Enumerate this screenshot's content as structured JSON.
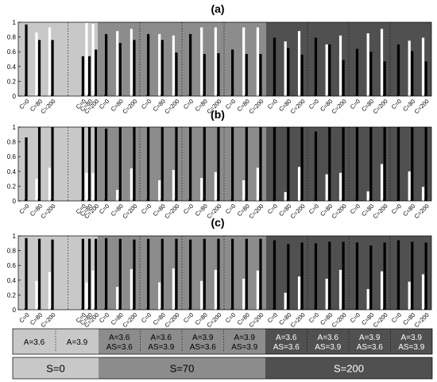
{
  "chart_data": [
    {
      "panel": "(a)",
      "type": "bar",
      "ylim": [
        0,
        1
      ],
      "yticks": [
        "0",
        "0.2",
        "0.4",
        "0.6",
        "0.8",
        "1"
      ],
      "tick_labels": [
        "C=0",
        "C=80",
        "C=200",
        "C=0",
        "C=80",
        "C=200",
        "C=0",
        "C=80",
        "C=200",
        "C=0",
        "C=80",
        "C=200",
        "C=0",
        "C=80",
        "C=200",
        "C=0",
        "C=80",
        "C=200",
        "C=0",
        "C=80",
        "C=200",
        "C=0",
        "C=80",
        "C=200",
        "C=0",
        "C=80",
        "C=200",
        "C=0",
        "C=80",
        "C=200"
      ],
      "series": [
        {
          "color": "#000000",
          "values": [
            0.97,
            0.76,
            0.76,
            0.54,
            0.54,
            0.63,
            0.84,
            0.72,
            0.76,
            0.84,
            0.76,
            0.59,
            0.84,
            0.57,
            0.58,
            0.63,
            0.57,
            0.57,
            0.79,
            0.65,
            0.56,
            0.79,
            0.7,
            0.49,
            0.64,
            0.6,
            0.47,
            0.7,
            0.61,
            0.47
          ]
        },
        {
          "color": "#ffffff",
          "values": [
            null,
            0.86,
            0.93,
            null,
            0.99,
            0.98,
            null,
            0.88,
            0.91,
            null,
            0.84,
            0.82,
            null,
            0.93,
            0.93,
            null,
            0.93,
            0.93,
            null,
            0.74,
            0.88,
            null,
            0.7,
            0.82,
            null,
            0.85,
            0.91,
            null,
            0.75,
            0.79
          ]
        }
      ]
    },
    {
      "panel": "(b)",
      "type": "bar",
      "ylim": [
        0,
        1
      ],
      "yticks": [
        "0",
        "0.2",
        "0.4",
        "0.6",
        "0.8",
        "1"
      ],
      "tick_labels": [
        "C=0",
        "C=80",
        "C=200",
        "C=0",
        "C=80",
        "C=200",
        "C=0",
        "C=80",
        "C=200",
        "C=0",
        "C=80",
        "C=200",
        "C=0",
        "C=80",
        "C=200",
        "C=0",
        "C=80",
        "C=200",
        "C=0",
        "C=80",
        "C=200",
        "C=0",
        "C=80",
        "C=200",
        "C=0",
        "C=80",
        "C=200",
        "C=0",
        "C=80",
        "C=200"
      ],
      "series": [
        {
          "color": "#000000",
          "values": [
            0.86,
            1.0,
            1.0,
            1.0,
            1.0,
            1.0,
            0.98,
            1.0,
            1.0,
            1.0,
            1.0,
            1.0,
            1.0,
            1.0,
            1.0,
            1.0,
            1.0,
            1.0,
            1.0,
            1.0,
            1.0,
            0.94,
            1.0,
            1.0,
            1.0,
            1.0,
            1.0,
            1.0,
            1.0,
            1.0
          ]
        },
        {
          "color": "#ffffff",
          "values": [
            null,
            0.3,
            0.45,
            null,
            0.38,
            0.38,
            null,
            0.15,
            0.44,
            null,
            0.28,
            0.42,
            null,
            0.31,
            0.39,
            null,
            0.28,
            0.45,
            null,
            0.12,
            0.46,
            null,
            0.36,
            0.38,
            null,
            0.13,
            0.5,
            null,
            0.4,
            0.19
          ]
        }
      ]
    },
    {
      "panel": "(c)",
      "type": "bar",
      "ylim": [
        0,
        1
      ],
      "yticks": [
        "0",
        "0.2",
        "0.4",
        "0.6",
        "0.8",
        "1"
      ],
      "tick_labels": [
        "C=0",
        "C=80",
        "C=200",
        "C=0",
        "C=80",
        "C=200",
        "C=0",
        "C=80",
        "C=200",
        "C=0",
        "C=80",
        "C=200",
        "C=0",
        "C=80",
        "C=200",
        "C=0",
        "C=80",
        "C=200",
        "C=0",
        "C=80",
        "C=200",
        "C=0",
        "C=80",
        "C=200",
        "C=0",
        "C=80",
        "C=200",
        "C=0",
        "C=80",
        "C=200"
      ],
      "series": [
        {
          "color": "#000000",
          "values": [
            0.97,
            0.96,
            0.95,
            0.96,
            0.96,
            0.96,
            0.97,
            0.96,
            0.95,
            0.96,
            0.96,
            0.96,
            0.95,
            0.96,
            0.96,
            0.96,
            0.96,
            0.96,
            0.94,
            0.89,
            0.91,
            0.9,
            0.92,
            0.92,
            0.91,
            0.87,
            0.91,
            0.94,
            0.92,
            0.91
          ]
        },
        {
          "color": "#ffffff",
          "values": [
            null,
            0.39,
            0.51,
            null,
            0.37,
            0.53,
            null,
            0.31,
            0.55,
            null,
            0.37,
            0.56,
            null,
            0.39,
            0.54,
            null,
            0.42,
            0.53,
            null,
            0.23,
            0.45,
            null,
            0.42,
            0.54,
            null,
            0.28,
            0.52,
            null,
            0.38,
            0.48
          ]
        }
      ]
    }
  ],
  "legend": {
    "row1": [
      {
        "line1": "A=3.6",
        "line2": ""
      },
      {
        "line1": "A=3.9",
        "line2": ""
      },
      {
        "line1": "A=3.6",
        "line2": "AS=3.6"
      },
      {
        "line1": "A=3.6",
        "line2": "AS=3.9"
      },
      {
        "line1": "A=3.9",
        "line2": "AS=3.6"
      },
      {
        "line1": "A=3.9",
        "line2": "AS=3.9"
      },
      {
        "line1": "A=3.6",
        "line2": "AS=3.6"
      },
      {
        "line1": "A=3.6",
        "line2": "AS=3.9"
      },
      {
        "line1": "A=3.9",
        "line2": "AS=3.6"
      },
      {
        "line1": "A=3.9",
        "line2": "AS=3.9"
      }
    ],
    "row2": [
      {
        "label": "S=0",
        "color": "#c8c8c8"
      },
      {
        "label": "S=70",
        "color": "#8c8c8c"
      },
      {
        "label": "S=200",
        "color": "#505050"
      }
    ]
  },
  "colors": {
    "s0_background": "#c8c8c8",
    "s70_background": "#8c8c8c",
    "s200_background": "#505050",
    "s0_text": "#000000",
    "s70_text": "#000000",
    "s200_text": "#ffffff"
  }
}
